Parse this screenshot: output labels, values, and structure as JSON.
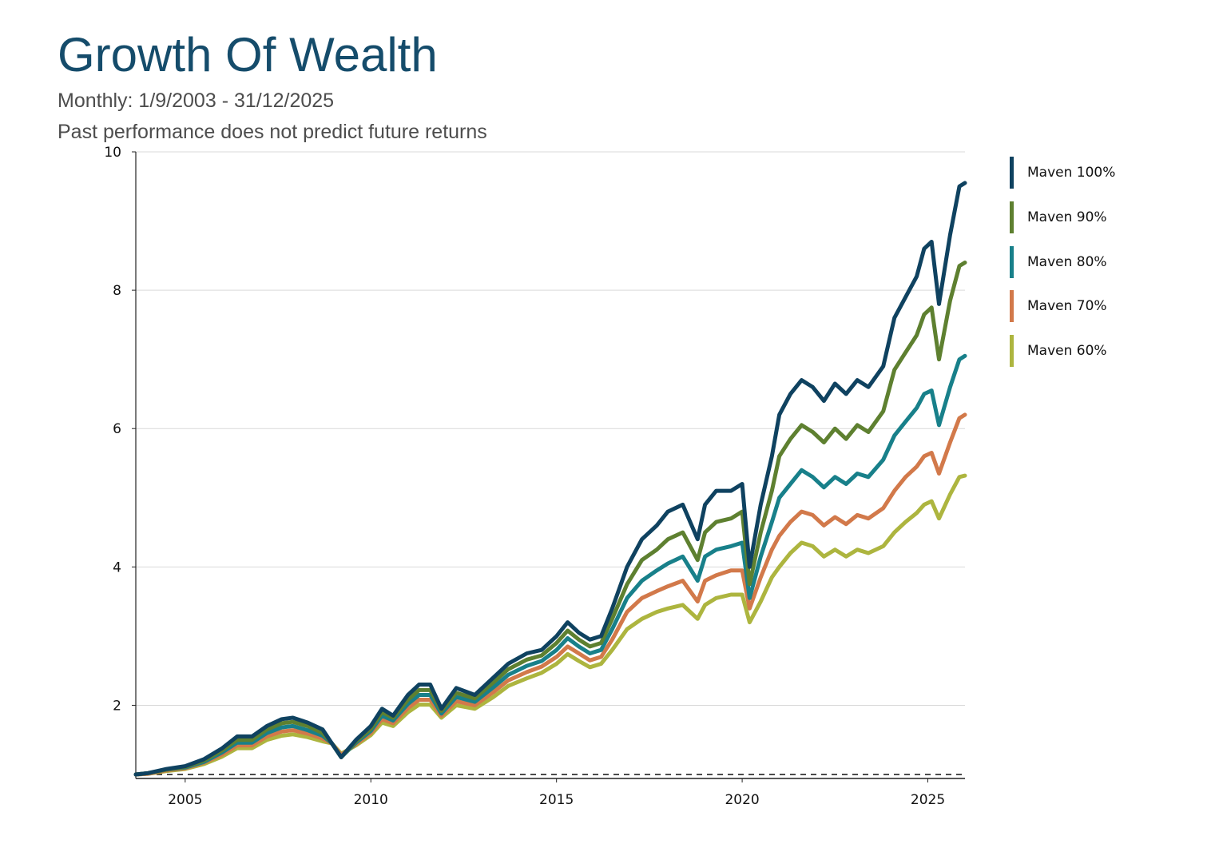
{
  "header": {
    "title": "Growth Of Wealth",
    "subtitle": "Monthly: 1/9/2003 - 31/12/2025",
    "disclaimer": "Past performance does not predict future returns"
  },
  "chart_data": {
    "type": "line",
    "title": "Growth Of Wealth",
    "subtitle": "Monthly: 1/9/2003 - 31/12/2025",
    "xlabel": "",
    "ylabel": "",
    "xlim": [
      2003.67,
      2026.0
    ],
    "ylim": [
      1,
      10
    ],
    "x_ticks": [
      2005,
      2010,
      2015,
      2020,
      2025
    ],
    "y_ticks": [
      2,
      4,
      6,
      8,
      10
    ],
    "grid": true,
    "baseline": 1,
    "legend_position": "right",
    "x": [
      2003.67,
      2004.0,
      2004.5,
      2005.0,
      2005.5,
      2006.0,
      2006.4,
      2006.8,
      2007.2,
      2007.6,
      2007.9,
      2008.3,
      2008.7,
      2008.95,
      2009.2,
      2009.6,
      2010.0,
      2010.3,
      2010.6,
      2011.0,
      2011.3,
      2011.6,
      2011.9,
      2012.3,
      2012.8,
      2013.3,
      2013.7,
      2014.2,
      2014.6,
      2015.0,
      2015.3,
      2015.6,
      2015.9,
      2016.2,
      2016.5,
      2016.9,
      2017.3,
      2017.7,
      2018.0,
      2018.4,
      2018.8,
      2019.0,
      2019.3,
      2019.7,
      2020.0,
      2020.2,
      2020.5,
      2020.8,
      2021.0,
      2021.3,
      2021.6,
      2021.9,
      2022.2,
      2022.5,
      2022.8,
      2023.1,
      2023.4,
      2023.8,
      2024.1,
      2024.4,
      2024.7,
      2024.9,
      2025.1,
      2025.3,
      2025.6,
      2025.85,
      2026.0
    ],
    "series": [
      {
        "name": "Maven 100%",
        "color": "#0f4260",
        "values": [
          1.0,
          1.02,
          1.08,
          1.12,
          1.22,
          1.38,
          1.55,
          1.55,
          1.7,
          1.8,
          1.82,
          1.75,
          1.65,
          1.45,
          1.25,
          1.5,
          1.7,
          1.95,
          1.85,
          2.15,
          2.3,
          2.3,
          1.95,
          2.25,
          2.15,
          2.4,
          2.6,
          2.75,
          2.8,
          3.0,
          3.2,
          3.05,
          2.95,
          3.0,
          3.4,
          4.0,
          4.4,
          4.6,
          4.8,
          4.9,
          4.4,
          4.9,
          5.1,
          5.1,
          5.2,
          4.0,
          4.9,
          5.6,
          6.2,
          6.5,
          6.7,
          6.6,
          6.4,
          6.65,
          6.5,
          6.7,
          6.6,
          6.9,
          7.6,
          7.9,
          8.2,
          8.6,
          8.7,
          7.8,
          8.8,
          9.5,
          9.55
        ]
      },
      {
        "name": "Maven 90%",
        "color": "#5e8030",
        "values": [
          1.0,
          1.02,
          1.07,
          1.11,
          1.2,
          1.35,
          1.5,
          1.5,
          1.65,
          1.74,
          1.76,
          1.7,
          1.6,
          1.45,
          1.25,
          1.48,
          1.66,
          1.9,
          1.82,
          2.08,
          2.22,
          2.22,
          1.92,
          2.18,
          2.1,
          2.33,
          2.52,
          2.66,
          2.72,
          2.9,
          3.08,
          2.95,
          2.85,
          2.9,
          3.25,
          3.75,
          4.1,
          4.25,
          4.4,
          4.5,
          4.1,
          4.5,
          4.65,
          4.7,
          4.8,
          3.75,
          4.5,
          5.1,
          5.6,
          5.85,
          6.05,
          5.95,
          5.8,
          6.0,
          5.85,
          6.05,
          5.95,
          6.25,
          6.85,
          7.1,
          7.35,
          7.65,
          7.75,
          7.0,
          7.85,
          8.35,
          8.4
        ]
      },
      {
        "name": "Maven 80%",
        "color": "#18808a",
        "values": [
          1.0,
          1.02,
          1.07,
          1.1,
          1.18,
          1.32,
          1.46,
          1.46,
          1.6,
          1.68,
          1.7,
          1.64,
          1.56,
          1.45,
          1.25,
          1.46,
          1.63,
          1.85,
          1.78,
          2.02,
          2.15,
          2.15,
          1.88,
          2.12,
          2.05,
          2.26,
          2.44,
          2.57,
          2.64,
          2.8,
          2.97,
          2.85,
          2.75,
          2.8,
          3.1,
          3.55,
          3.8,
          3.95,
          4.05,
          4.15,
          3.8,
          4.15,
          4.25,
          4.3,
          4.35,
          3.55,
          4.15,
          4.65,
          5.0,
          5.2,
          5.4,
          5.3,
          5.15,
          5.3,
          5.2,
          5.35,
          5.3,
          5.55,
          5.9,
          6.1,
          6.3,
          6.5,
          6.55,
          6.05,
          6.6,
          7.0,
          7.05
        ]
      },
      {
        "name": "Maven 70%",
        "color": "#d2794a",
        "values": [
          1.0,
          1.01,
          1.06,
          1.09,
          1.17,
          1.29,
          1.42,
          1.42,
          1.55,
          1.62,
          1.64,
          1.59,
          1.52,
          1.45,
          1.28,
          1.44,
          1.6,
          1.8,
          1.74,
          1.96,
          2.08,
          2.08,
          1.85,
          2.06,
          2.0,
          2.19,
          2.36,
          2.48,
          2.56,
          2.7,
          2.85,
          2.75,
          2.65,
          2.7,
          2.95,
          3.35,
          3.55,
          3.65,
          3.72,
          3.8,
          3.5,
          3.8,
          3.88,
          3.95,
          3.95,
          3.4,
          3.85,
          4.25,
          4.45,
          4.65,
          4.8,
          4.75,
          4.6,
          4.72,
          4.62,
          4.75,
          4.7,
          4.85,
          5.1,
          5.3,
          5.45,
          5.6,
          5.65,
          5.35,
          5.8,
          6.15,
          6.2
        ]
      },
      {
        "name": "Maven 60%",
        "color": "#adb53f",
        "values": [
          1.0,
          1.01,
          1.05,
          1.08,
          1.15,
          1.26,
          1.38,
          1.38,
          1.5,
          1.56,
          1.58,
          1.54,
          1.48,
          1.45,
          1.3,
          1.42,
          1.57,
          1.75,
          1.7,
          1.9,
          2.01,
          2.01,
          1.82,
          2.0,
          1.95,
          2.12,
          2.28,
          2.39,
          2.47,
          2.6,
          2.74,
          2.64,
          2.55,
          2.6,
          2.8,
          3.1,
          3.25,
          3.35,
          3.4,
          3.45,
          3.25,
          3.45,
          3.55,
          3.6,
          3.6,
          3.2,
          3.5,
          3.85,
          4.0,
          4.2,
          4.35,
          4.3,
          4.15,
          4.25,
          4.15,
          4.25,
          4.2,
          4.3,
          4.5,
          4.65,
          4.78,
          4.9,
          4.95,
          4.7,
          5.05,
          5.3,
          5.32
        ]
      }
    ]
  }
}
